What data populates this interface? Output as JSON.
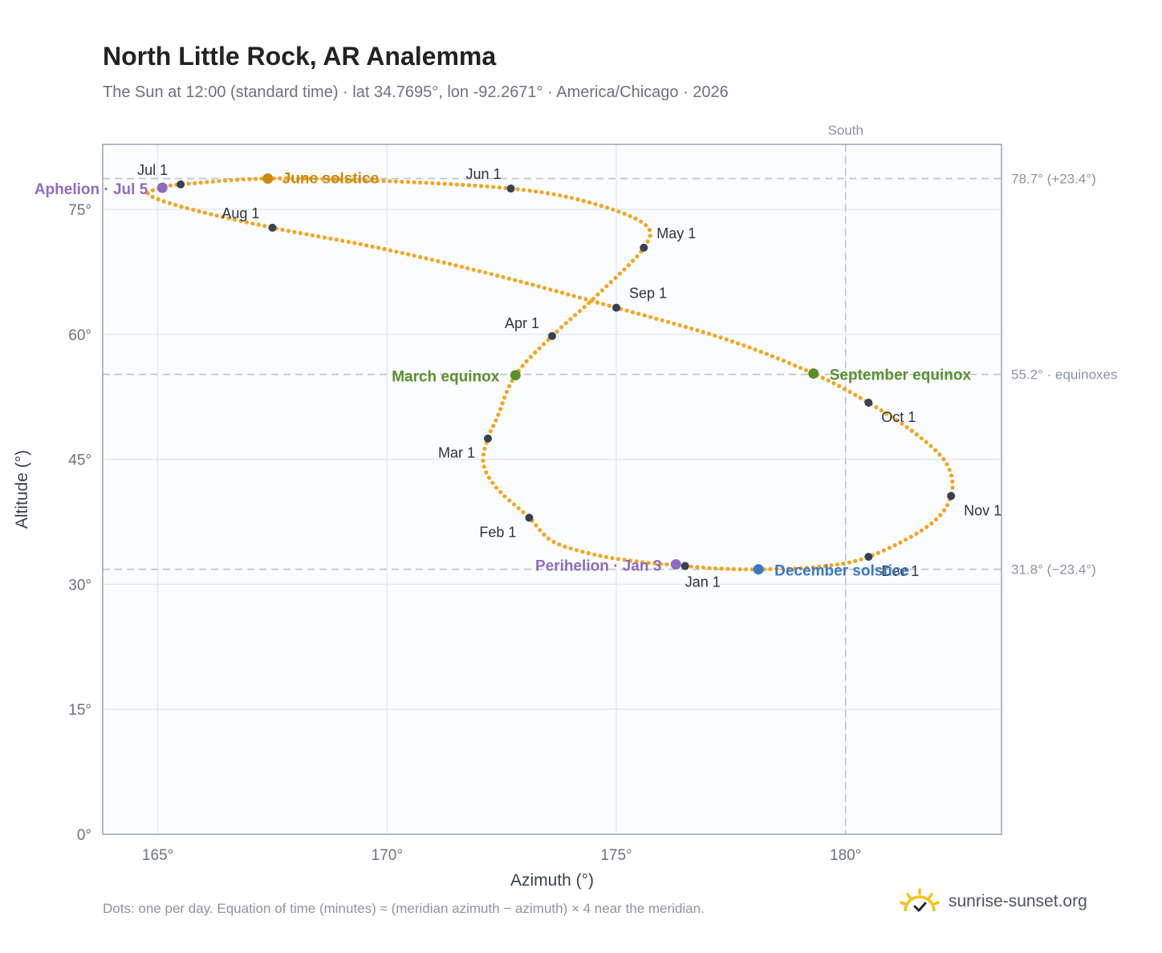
{
  "title": "North Little Rock, AR Analemma",
  "subtitle": "The Sun at 12:00 (standard time) · lat 34.7695°, lon -92.2671° · America/Chicago · 2026",
  "footnote": "Dots: one per day. Equation of time (minutes) ≈ (meridian azimuth − azimuth) × 4 near the meridian.",
  "brand": {
    "text": "sunrise-sunset.org",
    "icon": "sun-icon"
  },
  "colors": {
    "path": "#f2a623",
    "month_dot": "#374151",
    "solstice_june": "#c98a0f",
    "solstice_december": "#3a78c5",
    "equinox": "#5a8f2e",
    "apsis": "#8e6bbf",
    "plot_bg": "#fafcfe",
    "grid": "#e5eaf0",
    "ref_line": "#b8c4cf"
  },
  "chart_data": {
    "type": "scatter",
    "xlabel": "Azimuth (°)",
    "ylabel": "Altitude (°)",
    "xlim": [
      163.8,
      183.4
    ],
    "ylim": [
      0,
      82.8
    ],
    "xticks": [
      165,
      170,
      175,
      180
    ],
    "xtick_labels": [
      "165°",
      "170°",
      "175°",
      "180°"
    ],
    "yticks": [
      0,
      15,
      30,
      45,
      60,
      75
    ],
    "ytick_labels": [
      "0°",
      "15°",
      "30°",
      "45°",
      "60°",
      "75°"
    ],
    "grid": true,
    "meridian": {
      "azimuth": 180,
      "label": "South"
    },
    "ref_lines": [
      {
        "altitude": 78.7,
        "label": "78.7° (+23.4°)"
      },
      {
        "altitude": 55.2,
        "label": "55.2° · equinoxes"
      },
      {
        "altitude": 31.8,
        "label": "31.8° (−23.4°)"
      }
    ],
    "month_points": [
      {
        "label": "Jan 1",
        "az": 176.5,
        "alt": 32.2
      },
      {
        "label": "Feb 1",
        "az": 173.1,
        "alt": 38.0
      },
      {
        "label": "Mar 1",
        "az": 172.2,
        "alt": 47.5
      },
      {
        "label": "Apr 1",
        "az": 173.6,
        "alt": 59.8
      },
      {
        "label": "May 1",
        "az": 175.6,
        "alt": 70.4
      },
      {
        "label": "Jun 1",
        "az": 172.7,
        "alt": 77.5
      },
      {
        "label": "Jul 1",
        "az": 165.5,
        "alt": 78.0
      },
      {
        "label": "Aug 1",
        "az": 167.5,
        "alt": 72.8
      },
      {
        "label": "Sep 1",
        "az": 175.0,
        "alt": 63.2
      },
      {
        "label": "Oct 1",
        "az": 180.5,
        "alt": 51.8
      },
      {
        "label": "Nov 1",
        "az": 182.3,
        "alt": 40.6
      },
      {
        "label": "Dec 1",
        "az": 180.5,
        "alt": 33.3
      }
    ],
    "events": [
      {
        "label": "June solstice",
        "az": 167.4,
        "alt": 78.7,
        "kind": "solstice_june"
      },
      {
        "label": "December solstice",
        "az": 178.1,
        "alt": 31.8,
        "kind": "solstice_december"
      },
      {
        "label": "March equinox",
        "az": 172.8,
        "alt": 55.1,
        "kind": "equinox"
      },
      {
        "label": "September equinox",
        "az": 179.3,
        "alt": 55.3,
        "kind": "equinox"
      },
      {
        "label": "Aphelion · Jul 5",
        "az": 165.1,
        "alt": 77.6,
        "kind": "apsis"
      },
      {
        "label": "Perihelion · Jan 3",
        "az": 176.3,
        "alt": 32.4,
        "kind": "apsis"
      }
    ]
  }
}
